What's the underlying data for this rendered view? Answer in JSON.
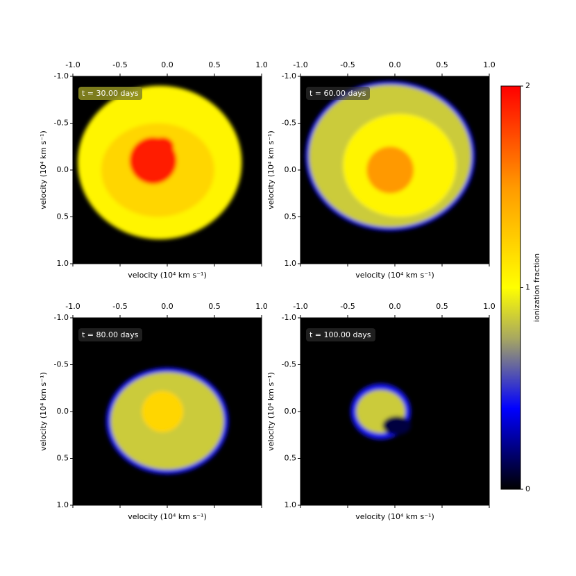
{
  "chart_data": {
    "type": "heatmap",
    "colorbar": {
      "label": "ionization fraction",
      "lim": [
        0,
        2
      ],
      "ticks": [
        0,
        1,
        2
      ],
      "colormap": [
        {
          "value": 0,
          "color": "#000000"
        },
        {
          "value": 0.4,
          "color": "#0000ff"
        },
        {
          "value": 0.75,
          "color": "#a8a860"
        },
        {
          "value": 1,
          "color": "#ffff00"
        },
        {
          "value": 1.5,
          "color": "#ff9900"
        },
        {
          "value": 2,
          "color": "#ff0000"
        }
      ]
    },
    "panels": [
      {
        "title": "t = 30.00 days",
        "xlabel": "velocity (10⁴ km s⁻¹)",
        "ylabel": "velocity (10⁴ km s⁻¹)",
        "xlim": [
          -1,
          1
        ],
        "ylim": [
          1,
          -1
        ],
        "xticks": [
          {
            "value": -1,
            "label": "-1.0"
          },
          -0.5,
          {
            "value": 0,
            "label": "0.0"
          },
          0.5,
          {
            "value": 1,
            "label": "1.0"
          }
        ],
        "yticks": [
          {
            "value": -1,
            "label": "-1.0"
          },
          -0.5,
          {
            "value": 0,
            "label": "0.0"
          },
          0.5,
          {
            "value": 1,
            "label": "1.0"
          }
        ],
        "background": 0,
        "regions": [
          {
            "cx": -0.08,
            "cy": -0.08,
            "rx": 0.87,
            "ry": 0.82,
            "value": 1.05
          },
          {
            "cx": -0.1,
            "cy": 0,
            "rx": 0.6,
            "ry": 0.5,
            "value": 1.2
          },
          {
            "cx": -0.15,
            "cy": -0.1,
            "rx": 0.25,
            "ry": 0.25,
            "value": 1.9
          },
          {
            "cx": -0.05,
            "cy": -0.25,
            "rx": 0.12,
            "ry": 0.1,
            "value": 1.9
          }
        ]
      },
      {
        "title": "t = 60.00 days",
        "xlabel": "velocity (10⁴ km s⁻¹)",
        "ylabel": "velocity (10⁴ km s⁻¹)",
        "xlim": [
          -1,
          1
        ],
        "ylim": [
          1,
          -1
        ],
        "xticks": [
          {
            "value": -1,
            "label": "-1.0"
          },
          -0.5,
          {
            "value": 0,
            "label": "0.0"
          },
          0.5,
          {
            "value": 1,
            "label": "1.0"
          }
        ],
        "yticks": [
          {
            "value": -1,
            "label": "-1.0"
          },
          -0.5,
          {
            "value": 0,
            "label": "0.0"
          },
          0.5,
          {
            "value": 1,
            "label": "1.0"
          }
        ],
        "background": 0,
        "regions": [
          {
            "cx": -0.05,
            "cy": -0.15,
            "rx": 0.9,
            "ry": 0.8,
            "value": 0.45
          },
          {
            "cx": -0.05,
            "cy": -0.15,
            "rx": 0.86,
            "ry": 0.76,
            "value": 0.85
          },
          {
            "cx": 0.05,
            "cy": -0.05,
            "rx": 0.6,
            "ry": 0.55,
            "value": 1.05
          },
          {
            "cx": -0.05,
            "cy": 0,
            "rx": 0.25,
            "ry": 0.25,
            "value": 1.5
          }
        ]
      },
      {
        "title": "t = 80.00 days",
        "xlabel": "velocity (10⁴ km s⁻¹)",
        "ylabel": "velocity (10⁴ km s⁻¹)",
        "xlim": [
          -1,
          1
        ],
        "ylim": [
          1,
          -1
        ],
        "xticks": [
          {
            "value": -1,
            "label": "-1.0"
          },
          -0.5,
          {
            "value": 0,
            "label": "0.0"
          },
          0.5,
          {
            "value": 1,
            "label": "1.0"
          }
        ],
        "yticks": [
          {
            "value": -1,
            "label": "-1.0"
          },
          -0.5,
          {
            "value": 0,
            "label": "0.0"
          },
          0.5,
          {
            "value": 1,
            "label": "1.0"
          }
        ],
        "background": 0,
        "regions": [
          {
            "cx": 0,
            "cy": 0.1,
            "rx": 0.65,
            "ry": 0.57,
            "value": 0.45
          },
          {
            "cx": 0,
            "cy": 0.1,
            "rx": 0.6,
            "ry": 0.52,
            "value": 0.85
          },
          {
            "cx": -0.05,
            "cy": 0,
            "rx": 0.22,
            "ry": 0.22,
            "value": 1.2
          }
        ]
      },
      {
        "title": "t = 100.00 days",
        "xlabel": "velocity (10⁴ km s⁻¹)",
        "ylabel": "velocity (10⁴ km s⁻¹)",
        "xlim": [
          -1,
          1
        ],
        "ylim": [
          1,
          -1
        ],
        "xticks": [
          {
            "value": -1,
            "label": "-1.0"
          },
          -0.5,
          {
            "value": 0,
            "label": "0.0"
          },
          0.5,
          {
            "value": 1,
            "label": "1.0"
          }
        ],
        "yticks": [
          {
            "value": -1,
            "label": "-1.0"
          },
          -0.5,
          {
            "value": 0,
            "label": "0.0"
          },
          0.5,
          {
            "value": 1,
            "label": "1.0"
          }
        ],
        "background": 0,
        "regions": [
          {
            "cx": -0.15,
            "cy": 0,
            "rx": 0.32,
            "ry": 0.3,
            "value": 0.45
          },
          {
            "cx": -0.15,
            "cy": 0,
            "rx": 0.26,
            "ry": 0.23,
            "value": 0.85
          },
          {
            "cx": 0.02,
            "cy": 0.15,
            "rx": 0.15,
            "ry": 0.1,
            "value": 0.1
          }
        ]
      }
    ]
  }
}
